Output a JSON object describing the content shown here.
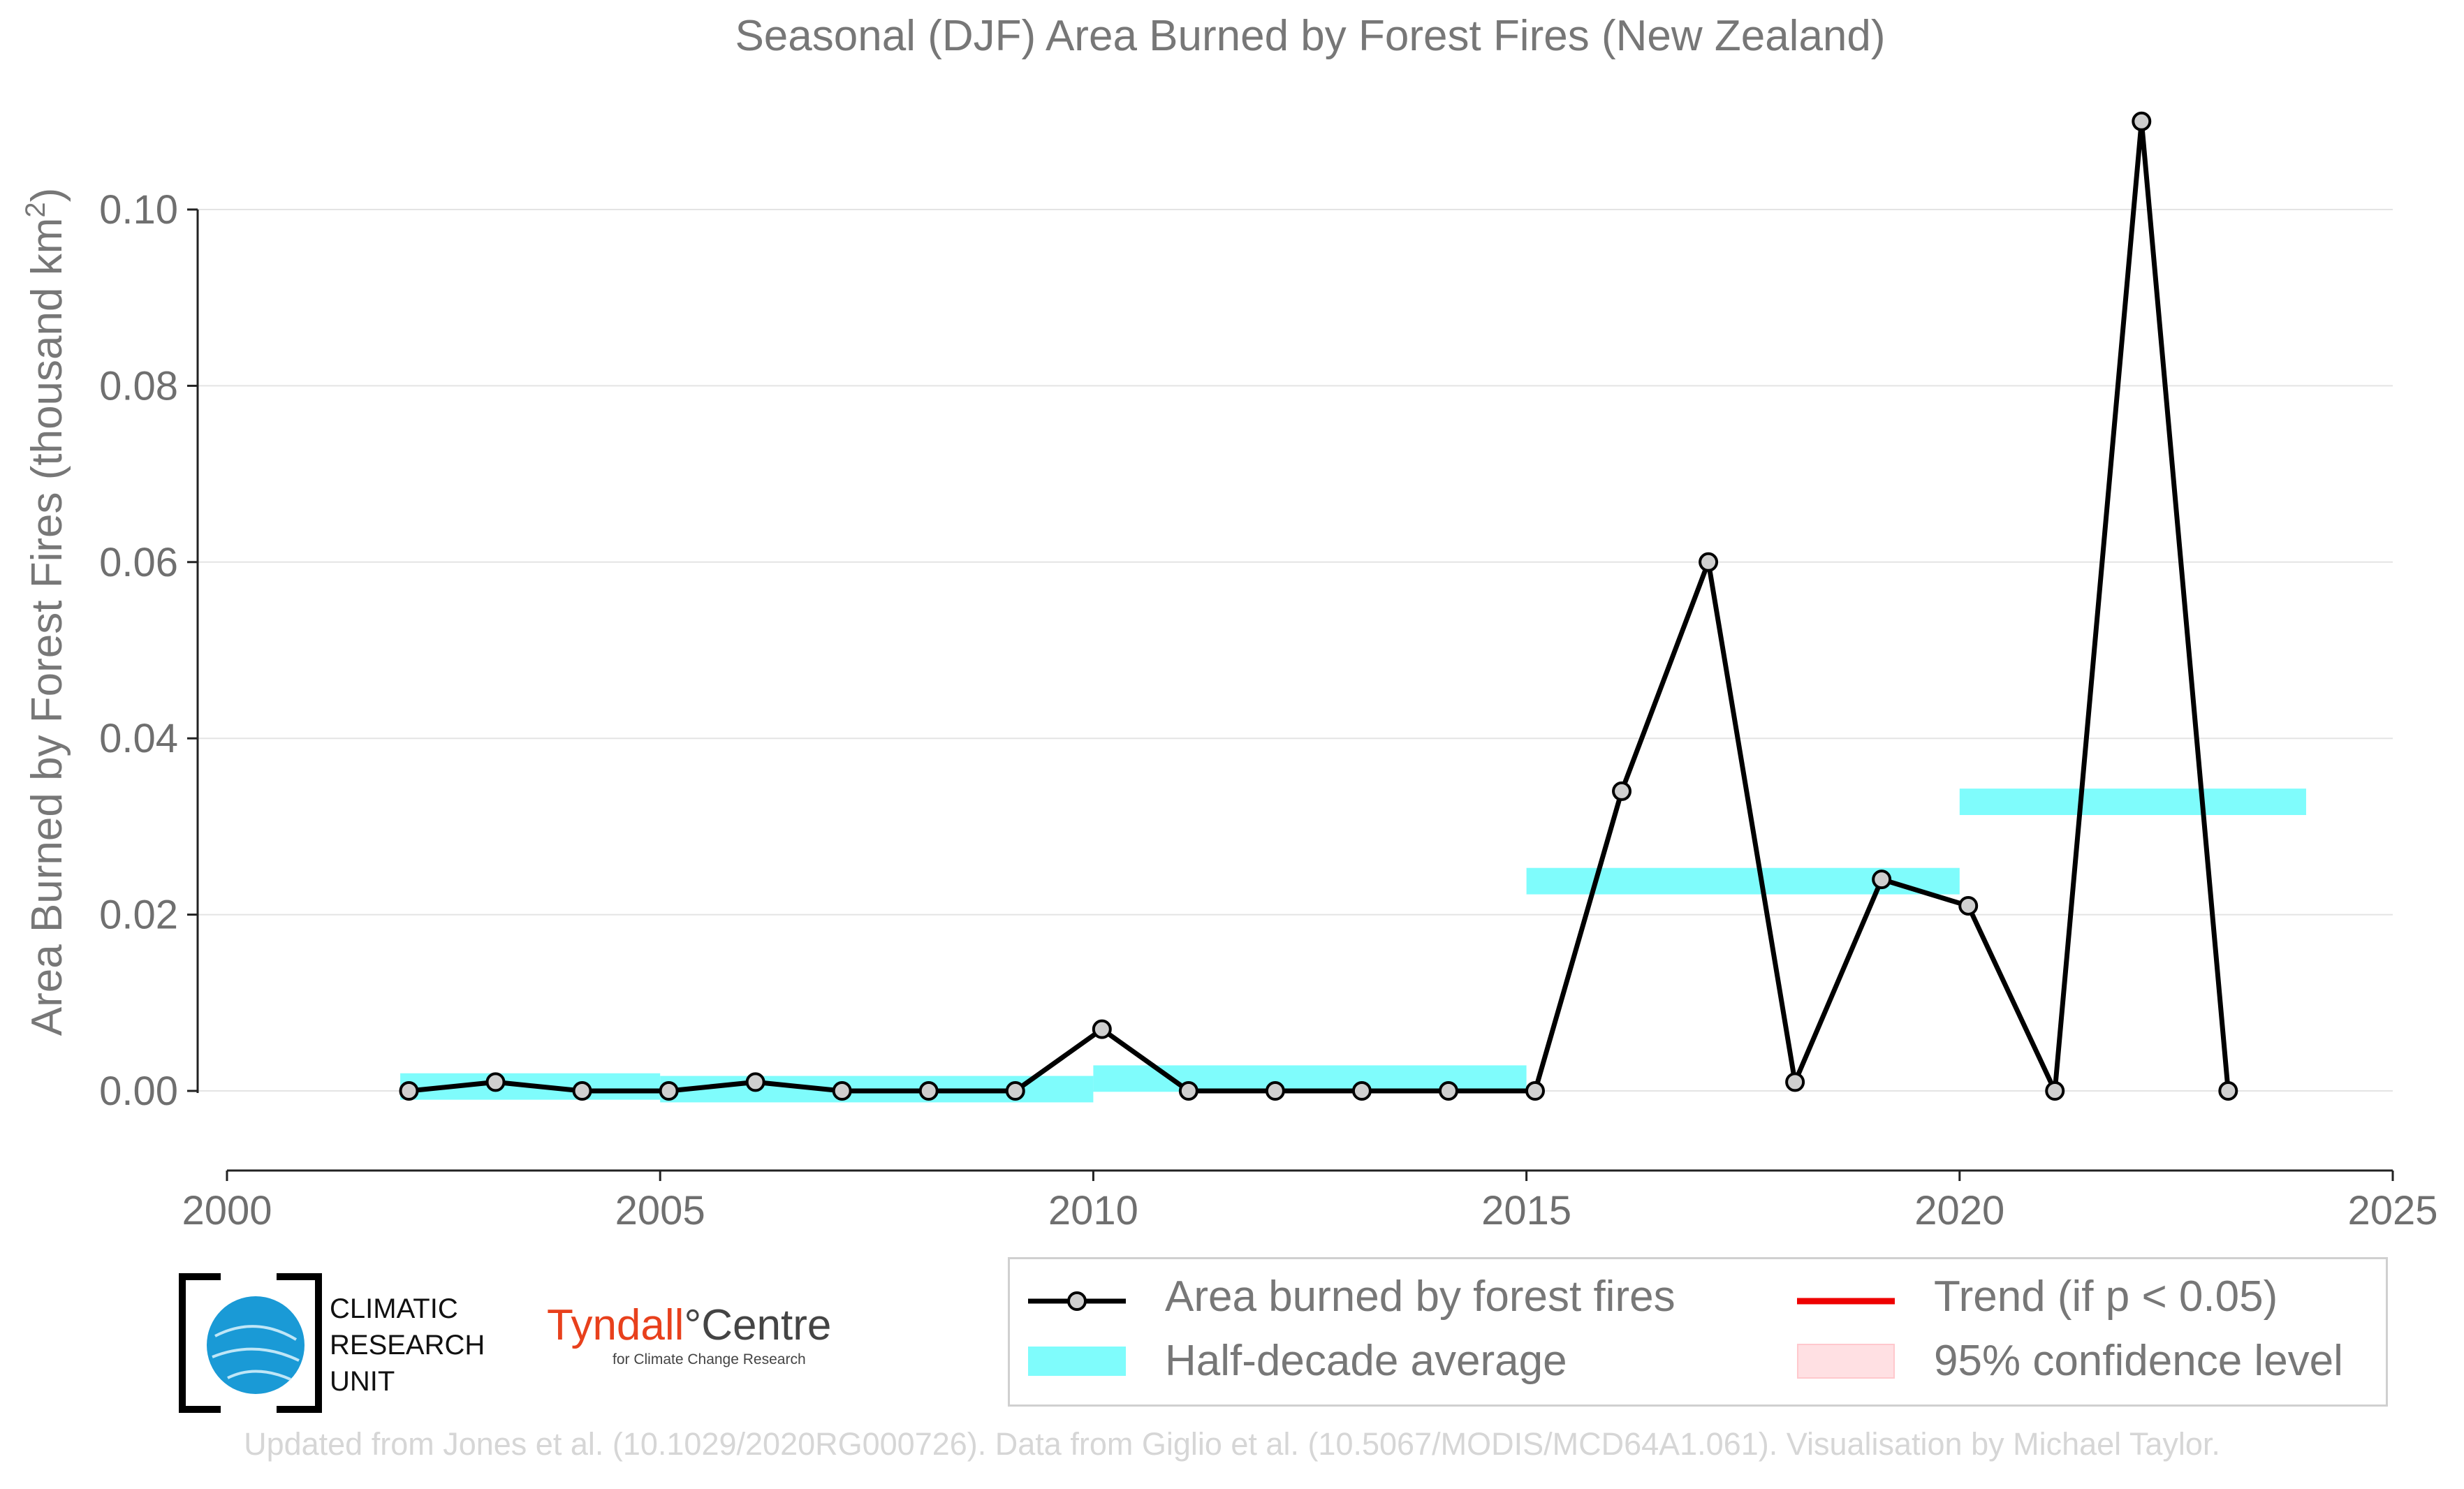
{
  "chart_data": {
    "type": "line",
    "title": "Seasonal (DJF) Area Burned by Forest Fires (New Zealand)",
    "ylabel_main": "Area Burned by Forest Fires (thousand km",
    "ylabel_sup": "2",
    "ylabel_close": ")",
    "xlabel": "",
    "xlim": [
      2000,
      2025
    ],
    "ylim": [
      -0.009,
      0.112
    ],
    "x_ticks": [
      2000,
      2005,
      2010,
      2015,
      2020,
      2025
    ],
    "y_ticks": [
      "0.00",
      "0.02",
      "0.04",
      "0.06",
      "0.08",
      "0.10"
    ],
    "y_tick_values": [
      0,
      0.02,
      0.04,
      0.06,
      0.08,
      0.1
    ],
    "grid": "horizontal",
    "series": [
      {
        "name": "Area burned by forest fires",
        "type": "line+markers",
        "color": "#000000",
        "marker_color": "#cfcfcf",
        "x": [
          2002.1,
          2003.1,
          2004.1,
          2005.1,
          2006.1,
          2007.1,
          2008.1,
          2009.1,
          2010.1,
          2011.1,
          2012.1,
          2013.1,
          2014.1,
          2015.1,
          2016.1,
          2017.1,
          2018.1,
          2019.1,
          2020.1,
          2021.1,
          2022.1,
          2023.1
        ],
        "values": [
          0.0,
          0.001,
          0.0,
          0.0,
          0.001,
          0.0,
          0.0,
          0.0,
          0.007,
          0.0,
          0.0,
          0.0,
          0.0,
          0.0,
          0.034,
          0.06,
          0.001,
          0.024,
          0.021,
          0.0,
          0.11,
          0.0
        ]
      }
    ],
    "half_decade_average": {
      "name": "Half-decade average",
      "color": "#7ffcfc",
      "segments": [
        {
          "x0": 2002,
          "x1": 2005,
          "value": 0.0005
        },
        {
          "x0": 2005,
          "x1": 2010,
          "value": 0.0002
        },
        {
          "x0": 2010,
          "x1": 2015,
          "value": 0.0014
        },
        {
          "x0": 2015,
          "x1": 2020,
          "value": 0.0238
        },
        {
          "x0": 2020,
          "x1": 2024,
          "value": 0.0328
        }
      ],
      "band_halfwidth": 0.0015
    },
    "legend": {
      "placement": "bottom-right",
      "items": [
        {
          "label": "Area burned by forest fires",
          "kind": "line-marker",
          "color": "#000000"
        },
        {
          "label": "Trend (if p < 0.05)",
          "kind": "line",
          "color": "#ee0000"
        },
        {
          "label": "Half-decade average",
          "kind": "band",
          "color": "#7ffcfc"
        },
        {
          "label": "95% confidence level",
          "kind": "band",
          "color": "#ffd8db"
        }
      ]
    }
  },
  "logos": {
    "cru_lines": [
      "CLIMATIC",
      "RESEARCH",
      "UNIT"
    ],
    "tyndall_name": "Tyndall",
    "tyndall_degree": "°",
    "tyndall_centre": "Centre",
    "tyndall_sub": "for Climate Change Research"
  },
  "credit": "Updated from Jones et al. (10.1029/2020RG000726). Data from Giglio et al. (10.5067/MODIS/MCD64A1.061). Visualisation by Michael Taylor."
}
